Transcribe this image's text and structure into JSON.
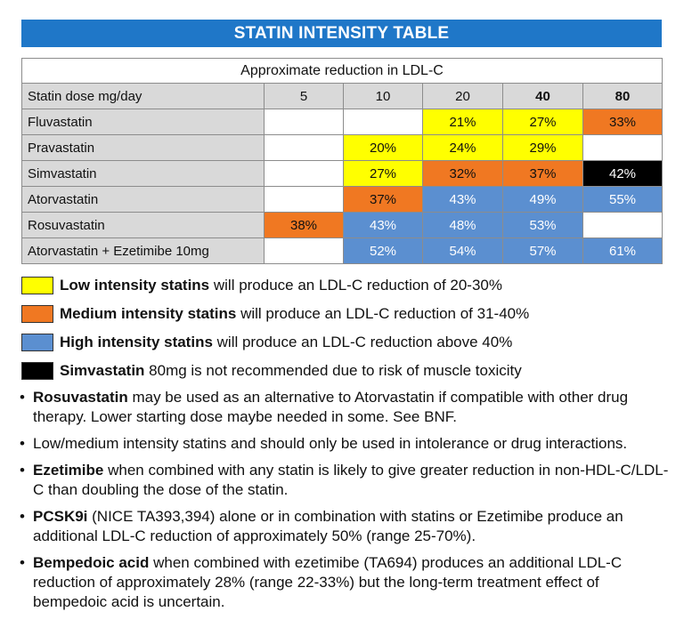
{
  "title": "STATIN INTENSITY TABLE",
  "table": {
    "super_header": "Approximate reduction in LDL-C",
    "dose_header": "Statin dose mg/day",
    "doses": [
      "5",
      "10",
      "20",
      "40",
      "80"
    ],
    "rows": [
      {
        "name": "Fluvastatin",
        "cells": [
          {
            "value": "",
            "level": "empty"
          },
          {
            "value": "",
            "level": "empty"
          },
          {
            "value": "21%",
            "level": "low"
          },
          {
            "value": "27%",
            "level": "low"
          },
          {
            "value": "33%",
            "level": "med"
          }
        ]
      },
      {
        "name": "Pravastatin",
        "cells": [
          {
            "value": "",
            "level": "empty"
          },
          {
            "value": "20%",
            "level": "low"
          },
          {
            "value": "24%",
            "level": "low"
          },
          {
            "value": "29%",
            "level": "low"
          },
          {
            "value": "",
            "level": "empty"
          }
        ]
      },
      {
        "name": "Simvastatin",
        "cells": [
          {
            "value": "",
            "level": "empty"
          },
          {
            "value": "27%",
            "level": "low"
          },
          {
            "value": "32%",
            "level": "med"
          },
          {
            "value": "37%",
            "level": "med"
          },
          {
            "value": "42%",
            "level": "black"
          }
        ]
      },
      {
        "name": "Atorvastatin",
        "cells": [
          {
            "value": "",
            "level": "empty"
          },
          {
            "value": "37%",
            "level": "med"
          },
          {
            "value": "43%",
            "level": "high"
          },
          {
            "value": "49%",
            "level": "high"
          },
          {
            "value": "55%",
            "level": "high"
          }
        ]
      },
      {
        "name": "Rosuvastatin",
        "cells": [
          {
            "value": "38%",
            "level": "med"
          },
          {
            "value": "43%",
            "level": "high"
          },
          {
            "value": "48%",
            "level": "high"
          },
          {
            "value": "53%",
            "level": "high"
          },
          {
            "value": "",
            "level": "empty"
          }
        ]
      },
      {
        "name": "Atorvastatin + Ezetimibe 10mg",
        "cells": [
          {
            "value": "",
            "level": "empty"
          },
          {
            "value": "52%",
            "level": "high"
          },
          {
            "value": "54%",
            "level": "high"
          },
          {
            "value": "57%",
            "level": "high"
          },
          {
            "value": "61%",
            "level": "high"
          }
        ]
      }
    ]
  },
  "legend": [
    {
      "color": "#ffff00",
      "bold": "Low intensity statins",
      "rest": " will produce an LDL-C reduction of 20-30%"
    },
    {
      "color": "#f07822",
      "bold": "Medium intensity statins",
      "rest": " will produce an LDL-C reduction of 31-40%"
    },
    {
      "color": "#5b8fd0",
      "bold": "High intensity statins",
      "rest": " will produce an LDL-C reduction above 40%"
    },
    {
      "color": "#000000",
      "bold": "Simvastatin",
      "rest": " 80mg is not recommended due to risk of muscle toxicity"
    }
  ],
  "notes": [
    {
      "bold": "Rosuvastatin",
      "rest": " may be used as an alternative to Atorvastatin if compatible with other drug therapy. Lower starting dose maybe needed in some. See BNF."
    },
    {
      "bold": "",
      "rest": "Low/medium intensity statins and should only be used in intolerance or drug interactions."
    },
    {
      "bold": "Ezetimibe",
      "rest": " when combined with any statin is likely to give greater reduction in non-HDL-C/LDL-C than doubling the dose of the statin."
    },
    {
      "bold": "PCSK9i",
      "rest": " (NICE TA393,394) alone or in combination with statins or Ezetimibe produce an additional LDL-C reduction of approximately 50% (range 25-70%)."
    },
    {
      "bold": "Bempedoic acid",
      "rest": " when combined with ezetimibe (TA694) produces an additional LDL-C reduction of approximately 28% (range 22-33%) but the long-term treatment effect of bempedoic acid is uncertain."
    }
  ],
  "bullet_char": "•"
}
